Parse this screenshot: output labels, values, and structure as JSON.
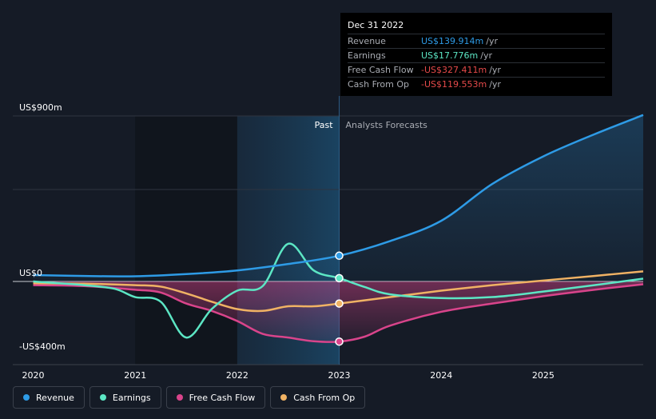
{
  "chart_data": {
    "type": "line",
    "x_ticks": [
      "2020",
      "2021",
      "2022",
      "2023",
      "2024",
      "2025"
    ],
    "y_ticks": [
      {
        "label": "US$900m",
        "value": 900
      },
      {
        "label": "US$0",
        "value": 0
      },
      {
        "label": "-US$400m",
        "value": -400
      }
    ],
    "ylim": [
      -400,
      900
    ],
    "xlim": [
      2019.8,
      2025.98
    ],
    "forecast_start": 2023.0,
    "past_start": 2022.0,
    "period_labels": {
      "past": "Past",
      "forecast": "Analysts Forecasts"
    },
    "series": [
      {
        "name": "Revenue",
        "color": "#2e9be6",
        "points": [
          [
            2020.0,
            35
          ],
          [
            2020.5,
            30
          ],
          [
            2021.0,
            28
          ],
          [
            2021.5,
            40
          ],
          [
            2022.0,
            60
          ],
          [
            2022.5,
            95
          ],
          [
            2023.0,
            140
          ],
          [
            2023.5,
            220
          ],
          [
            2024.0,
            330
          ],
          [
            2024.5,
            530
          ],
          [
            2025.0,
            680
          ],
          [
            2025.5,
            800
          ],
          [
            2025.98,
            905
          ]
        ]
      },
      {
        "name": "Earnings",
        "color": "#5ce6c4",
        "points": [
          [
            2020.0,
            0
          ],
          [
            2020.5,
            -20
          ],
          [
            2020.8,
            -40
          ],
          [
            2021.0,
            -85
          ],
          [
            2021.25,
            -110
          ],
          [
            2021.5,
            -305
          ],
          [
            2021.75,
            -150
          ],
          [
            2022.0,
            -50
          ],
          [
            2022.25,
            -25
          ],
          [
            2022.5,
            205
          ],
          [
            2022.75,
            60
          ],
          [
            2023.0,
            18
          ],
          [
            2023.25,
            -30
          ],
          [
            2023.5,
            -70
          ],
          [
            2024.0,
            -90
          ],
          [
            2024.5,
            -85
          ],
          [
            2025.0,
            -55
          ],
          [
            2025.5,
            -20
          ],
          [
            2025.98,
            15
          ]
        ]
      },
      {
        "name": "Free Cash Flow",
        "color": "#d9448b",
        "points": [
          [
            2020.0,
            -20
          ],
          [
            2020.5,
            -25
          ],
          [
            2021.0,
            -45
          ],
          [
            2021.25,
            -60
          ],
          [
            2021.5,
            -120
          ],
          [
            2021.75,
            -160
          ],
          [
            2022.0,
            -215
          ],
          [
            2022.25,
            -285
          ],
          [
            2022.5,
            -305
          ],
          [
            2022.75,
            -325
          ],
          [
            2023.0,
            -327
          ],
          [
            2023.25,
            -300
          ],
          [
            2023.5,
            -240
          ],
          [
            2024.0,
            -165
          ],
          [
            2024.5,
            -120
          ],
          [
            2025.0,
            -80
          ],
          [
            2025.5,
            -45
          ],
          [
            2025.98,
            -15
          ]
        ]
      },
      {
        "name": "Cash From Op",
        "color": "#f0b264",
        "points": [
          [
            2020.0,
            -10
          ],
          [
            2020.5,
            -12
          ],
          [
            2021.0,
            -20
          ],
          [
            2021.25,
            -28
          ],
          [
            2021.5,
            -65
          ],
          [
            2021.75,
            -110
          ],
          [
            2022.0,
            -150
          ],
          [
            2022.25,
            -160
          ],
          [
            2022.5,
            -135
          ],
          [
            2022.75,
            -135
          ],
          [
            2023.0,
            -120
          ],
          [
            2023.5,
            -85
          ],
          [
            2024.0,
            -50
          ],
          [
            2024.5,
            -20
          ],
          [
            2025.0,
            5
          ],
          [
            2025.5,
            30
          ],
          [
            2025.98,
            55
          ]
        ]
      }
    ],
    "markers_at": 2023.0
  },
  "tooltip": {
    "date": "Dec 31 2022",
    "rows": [
      {
        "label": "Revenue",
        "value": "US$139.914m",
        "unit": "/yr",
        "color": "#2e9be6"
      },
      {
        "label": "Earnings",
        "value": "US$17.776m",
        "unit": "/yr",
        "color": "#5ce6c4"
      },
      {
        "label": "Free Cash Flow",
        "value": "-US$327.411m",
        "unit": "/yr",
        "color": "#e64a4a"
      },
      {
        "label": "Cash From Op",
        "value": "-US$119.553m",
        "unit": "/yr",
        "color": "#e64a4a"
      }
    ]
  },
  "legend": [
    {
      "label": "Revenue",
      "color": "#2e9be6"
    },
    {
      "label": "Earnings",
      "color": "#5ce6c4"
    },
    {
      "label": "Free Cash Flow",
      "color": "#d9448b"
    },
    {
      "label": "Cash From Op",
      "color": "#f0b264"
    }
  ]
}
